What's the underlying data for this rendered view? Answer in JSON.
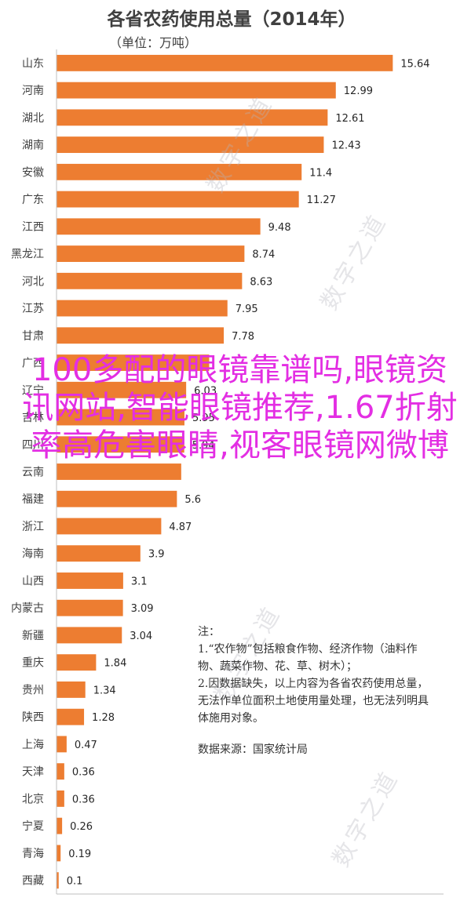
{
  "chart_data": {
    "type": "bar",
    "orientation": "horizontal",
    "title": "各省农药使用总量（2014年）",
    "subtitle": "（单位：万吨）",
    "categories": [
      "山东",
      "河南",
      "湖北",
      "湖南",
      "安徽",
      "广东",
      "江西",
      "黑龙江",
      "河北",
      "江苏",
      "甘肃",
      "广西",
      "辽宁",
      "吉林",
      "四川",
      "云南",
      "福建",
      "浙江",
      "海南",
      "山西",
      "内蒙古",
      "新疆",
      "重庆",
      "贵州",
      "陕西",
      "上海",
      "天津",
      "北京",
      "宁夏",
      "青海",
      "西藏"
    ],
    "values": [
      15.64,
      12.99,
      12.61,
      12.43,
      11.4,
      11.27,
      9.48,
      8.74,
      8.63,
      7.95,
      7.78,
      7.1,
      6.03,
      5.95,
      5.94,
      5.8,
      5.6,
      4.87,
      3.9,
      3.1,
      3.09,
      3.04,
      1.84,
      1.34,
      1.28,
      0.47,
      0.36,
      0.36,
      0.26,
      0.19,
      0.1
    ],
    "value_labels": [
      "15.64",
      "12.99",
      "12.61",
      "12.43",
      "11.4",
      "11.27",
      "9.48",
      "8.74",
      "8.63",
      "7.95",
      "7.78",
      "",
      "6.03",
      "5.95",
      "5.94",
      "",
      "5.6",
      "4.87",
      "3.9",
      "3.1",
      "3.09",
      "3.04",
      "1.84",
      "1.34",
      "1.28",
      "0.47",
      "0.36",
      "0.36",
      "0.26",
      "0.19",
      "0.1"
    ],
    "category_labels": [
      "山东",
      "河南",
      "湖北",
      "湖南",
      "安徽",
      "广东",
      "江西",
      "黑龙江",
      "河北",
      "江苏",
      "甘肃",
      "广西",
      "辽宁",
      "吉林",
      "四川",
      "云南",
      "福建",
      "浙江",
      "海南",
      "山西",
      "内蒙古",
      "新疆",
      "重庆",
      "贵州",
      "陕西",
      "上海",
      "天津",
      "北京",
      "宁夏",
      "青海",
      "西藏"
    ],
    "xlim": [
      0,
      18
    ],
    "xticks": [
      "0",
      "2",
      "4",
      "6",
      "8",
      "10",
      "12",
      "14",
      "16",
      "18"
    ],
    "bar_color": "#ed7d31",
    "grid": false
  },
  "notes": {
    "heading": "注：",
    "note1": "1.“农作物”包括粮食作物、经济作物（油料作物、蔬菜作物、花、草、树木）；",
    "note2": "2.因数据缺失，以上内容为各省农药使用总量，无法作单位面积土地使用量处理，也无法列明具体施用对象。",
    "source": "数据来源：国家统计局"
  },
  "overlay_text": "100多配的眼镜靠谱吗,眼镜资讯网站,智能眼镜推荐,1.67折射率高危害眼睛,视客眼镜网微博",
  "watermark_text": "数字之道"
}
